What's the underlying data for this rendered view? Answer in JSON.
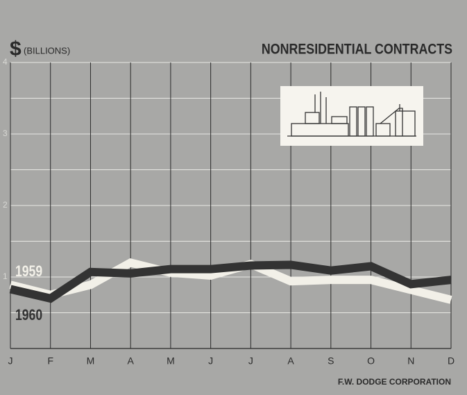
{
  "chart_data": {
    "type": "line",
    "title": "NONRESIDENTIAL CONTRACTS",
    "currency_symbol": "$",
    "y_label": "(BILLIONS)",
    "source": "F.W. DODGE CORPORATION",
    "categories": [
      "J",
      "F",
      "M",
      "A",
      "M",
      "J",
      "J",
      "A",
      "S",
      "O",
      "N",
      "D"
    ],
    "series": [
      {
        "name": "1959",
        "color": "#f2f0e8",
        "values": [
          0.89,
          0.75,
          0.89,
          1.2,
          1.06,
          1.02,
          1.18,
          0.94,
          0.96,
          0.96,
          0.82,
          0.68
        ]
      },
      {
        "name": "1960",
        "color": "#333333",
        "values": [
          0.83,
          0.7,
          1.07,
          1.05,
          1.11,
          1.11,
          1.16,
          1.17,
          1.09,
          1.15,
          0.9,
          0.96
        ]
      }
    ],
    "ylim": [
      0,
      4
    ],
    "yticks": [
      1,
      2,
      3,
      4
    ],
    "minor_yticks": [
      0.5,
      1.5,
      2.5,
      3.5
    ],
    "grid": true
  }
}
